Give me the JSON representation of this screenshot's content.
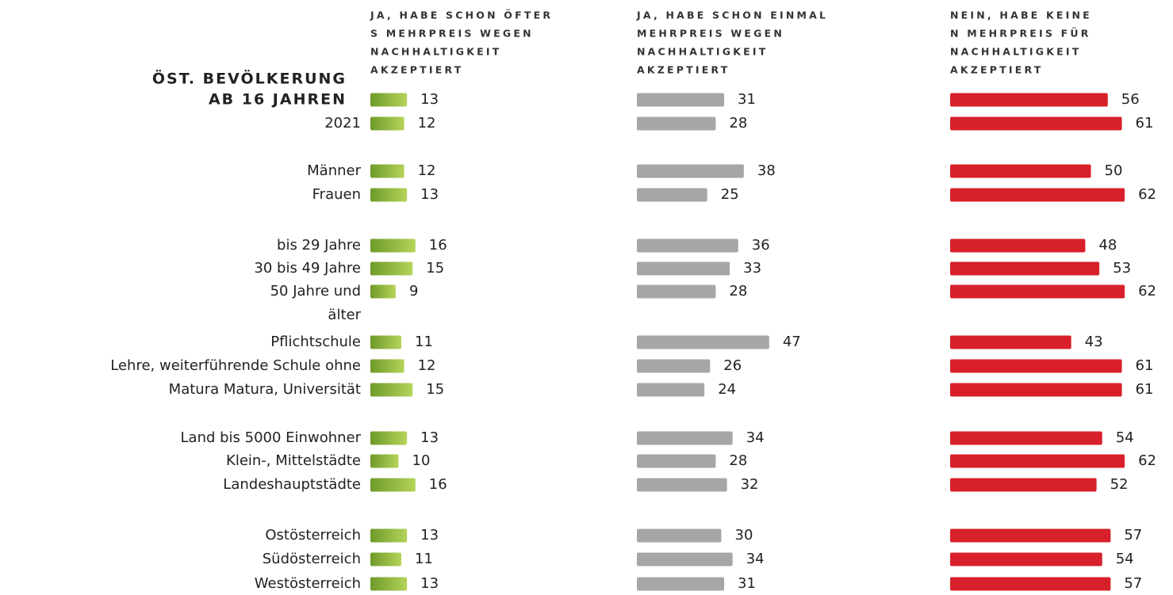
{
  "chart_data": {
    "type": "bar",
    "group_title": "ÖST. BEVÖLKERUNG",
    "categories": [
      "AB 16 JAHREN",
      "2021",
      "Männer",
      "Frauen",
      "bis 29 Jahre",
      "30 bis 49 Jahre",
      [
        "50 Jahre und",
        "älter"
      ],
      "Pflichtschule",
      "Lehre, weiterführende Schule ohne",
      "Matura Matura, Universität",
      "Land bis 5000 Einwohner",
      "Klein-, Mittelstädte",
      "Landeshauptstädte",
      "Ostösterreich",
      "Südösterreich",
      "Westösterreich"
    ],
    "series": [
      {
        "name": [
          "JA, HABE SCHON ÖFTER",
          "S MEHRPREIS WEGEN",
          "NACHHALTIGKEIT",
          "AKZEPTIERT"
        ],
        "color": "#8cb43c",
        "values": [
          13,
          12,
          12,
          13,
          16,
          15,
          9,
          11,
          12,
          15,
          13,
          10,
          16,
          13,
          11,
          13
        ]
      },
      {
        "name": [
          "JA, HABE SCHON EINMAL",
          "MEHRPREIS WEGEN",
          "NACHHALTIGKEIT",
          "AKZEPTIERT"
        ],
        "color": "#a6a6a6",
        "values": [
          31,
          28,
          38,
          25,
          36,
          33,
          28,
          47,
          26,
          24,
          34,
          28,
          32,
          30,
          34,
          31
        ]
      },
      {
        "name": [
          "NEIN, HABE KEINE",
          "N MEHRPREIS FÜR",
          "NACHHALTIGKEIT",
          "AKZEPTIERT"
        ],
        "color": "#d8202a",
        "values": [
          56,
          61,
          50,
          62,
          48,
          53,
          62,
          43,
          61,
          61,
          54,
          62,
          52,
          57,
          54,
          57
        ]
      }
    ]
  }
}
